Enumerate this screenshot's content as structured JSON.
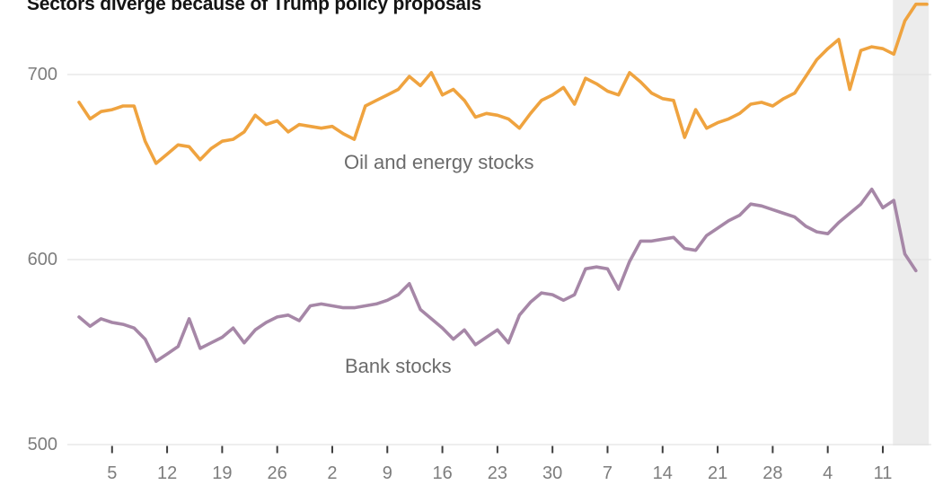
{
  "title": "Sectors diverge because of Trump policy proposals",
  "labels": {
    "oil_series": "Oil and energy stocks",
    "bank_series": "Bank stocks"
  },
  "colors": {
    "oil": "#efa33f",
    "bank": "#a687a7",
    "gridline": "#e3e3e3",
    "axis_text": "#7d7d7d",
    "series_label_text": "#6b6b6b",
    "title_text": "#141414",
    "tick_mark": "#3d3d3d",
    "highlight_band": "#ececec"
  },
  "chart_data": {
    "type": "line",
    "title": "Sectors diverge because of Trump policy proposals",
    "xlabel": "",
    "ylabel": "",
    "y_ticks": [
      700,
      600,
      500
    ],
    "ylim": [
      500,
      740
    ],
    "grid": "horizontal-only",
    "legend_position": "inline-labels",
    "x_tick_labels": [
      "5",
      "12",
      "19",
      "26",
      "2",
      "9",
      "16",
      "23",
      "30",
      "7",
      "14",
      "21",
      "28",
      "4",
      "11"
    ],
    "x_tick_indices": [
      3,
      8,
      13,
      18,
      23,
      28,
      33,
      38,
      43,
      48,
      53,
      58,
      63,
      68,
      73
    ],
    "x_unit": "trading days (weekly date ticks)",
    "highlight_band": {
      "start_index": 74,
      "end_index": 77.1
    },
    "series": [
      {
        "name": "Oil and energy stocks",
        "color_key": "oil",
        "values": [
          685,
          676,
          680,
          681,
          683,
          683,
          664,
          652,
          657,
          662,
          661,
          654,
          660,
          664,
          665,
          669,
          678,
          673,
          675,
          669,
          673,
          672,
          671,
          672,
          668,
          665,
          683,
          686,
          689,
          692,
          699,
          694,
          701,
          689,
          692,
          686,
          677,
          679,
          678,
          676,
          671,
          679,
          686,
          689,
          693,
          684,
          698,
          695,
          691,
          689,
          701,
          696,
          690,
          687,
          686,
          666,
          681,
          671,
          674,
          676,
          679,
          684,
          685,
          683,
          687,
          690,
          699,
          708,
          714,
          719,
          692,
          713,
          715,
          714,
          711,
          729,
          738,
          738
        ]
      },
      {
        "name": "Bank stocks",
        "color_key": "bank",
        "values": [
          569,
          564,
          568,
          566,
          565,
          563,
          557,
          545,
          549,
          553,
          568,
          552,
          555,
          558,
          563,
          555,
          562,
          566,
          569,
          570,
          567,
          575,
          576,
          575,
          574,
          574,
          575,
          576,
          578,
          581,
          587,
          573,
          568,
          563,
          557,
          562,
          554,
          558,
          562,
          555,
          570,
          577,
          582,
          581,
          578,
          581,
          595,
          596,
          595,
          584,
          599,
          610,
          610,
          611,
          612,
          606,
          605,
          613,
          617,
          621,
          624,
          630,
          629,
          627,
          625,
          623,
          618,
          615,
          614,
          620,
          625,
          630,
          638,
          628,
          632,
          603,
          594
        ]
      }
    ]
  }
}
